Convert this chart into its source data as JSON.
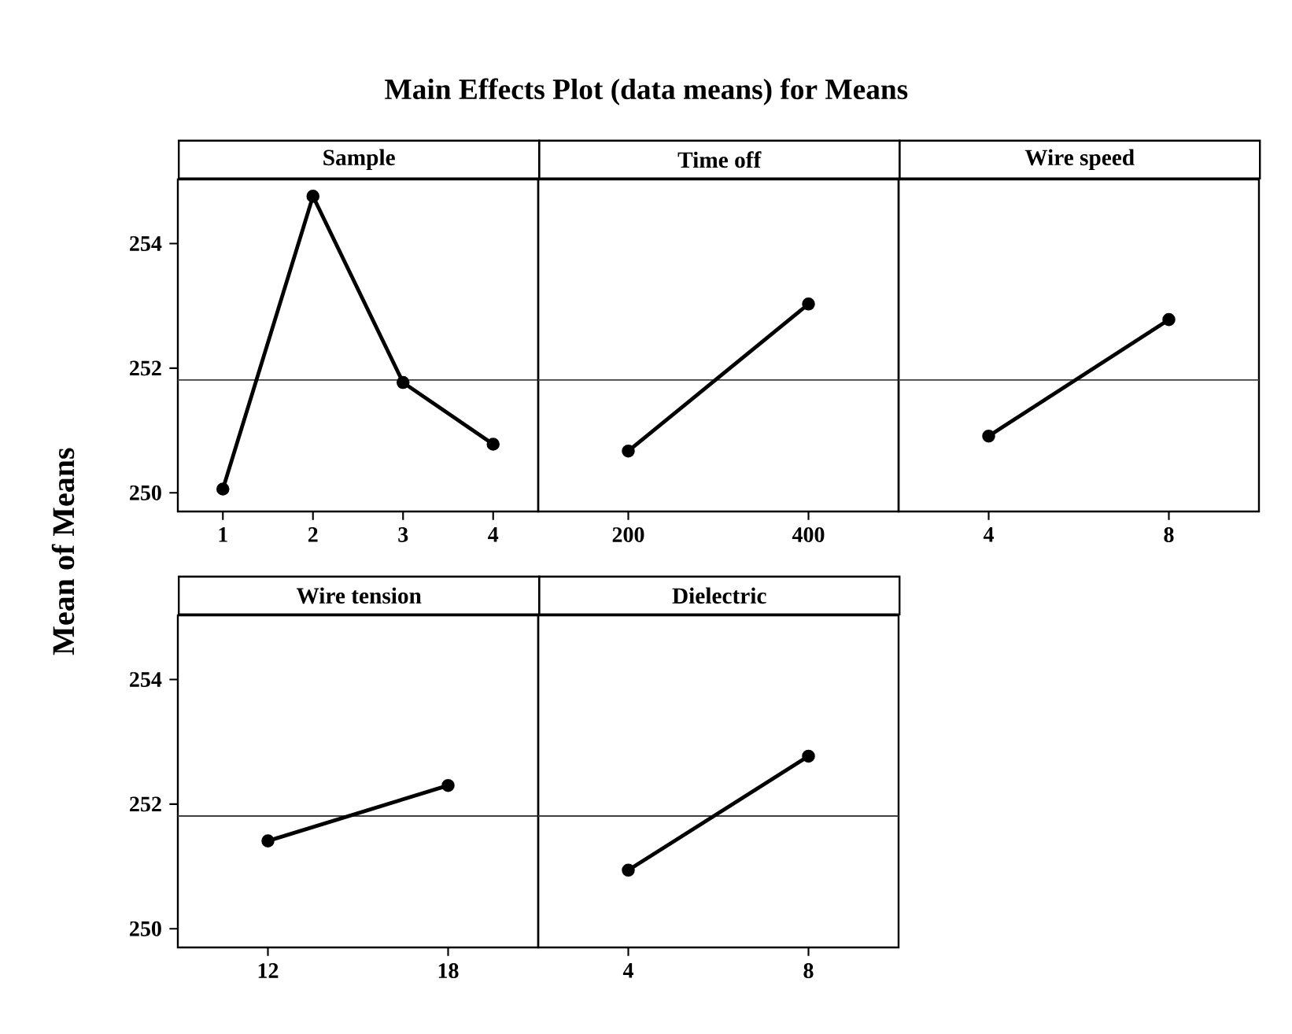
{
  "chart_data": [
    {
      "type": "line",
      "title": "Main Effects Plot (data means) for Means",
      "subtitle": "Sample",
      "ylabel": "Mean of Means",
      "x": [
        1,
        2,
        3,
        4
      ],
      "values": [
        250.06,
        254.76,
        251.77,
        250.78
      ],
      "color": "#000000",
      "marker": "circle",
      "xlim": [
        0.5,
        4.5
      ],
      "xticks": [
        1,
        2,
        3,
        4
      ],
      "ylim": [
        249.7,
        255.03
      ],
      "yticks": [
        250,
        252,
        254
      ],
      "ref_lines": [
        {
          "axis": "y",
          "value": 251.81,
          "color": "#404040"
        }
      ]
    },
    {
      "type": "line",
      "subtitle": "Time off",
      "x": [
        200,
        400
      ],
      "values": [
        250.67,
        253.03
      ],
      "color": "#000000",
      "marker": "circle",
      "xlim": [
        100,
        500
      ],
      "xticks": [
        200,
        400
      ],
      "ylim": [
        249.7,
        255.03
      ],
      "yticks": [
        250,
        252,
        254
      ],
      "tick_labels": "x",
      "ref_lines": [
        {
          "axis": "y",
          "value": 251.81,
          "color": "#404040"
        }
      ]
    },
    {
      "type": "line",
      "subtitle": "Wire speed",
      "x": [
        4,
        8
      ],
      "values": [
        250.91,
        252.78
      ],
      "color": "#000000",
      "marker": "circle",
      "xlim": [
        2,
        10
      ],
      "xticks": [
        4,
        8
      ],
      "ylim": [
        249.7,
        255.03
      ],
      "yticks": [
        250,
        252,
        254
      ],
      "tick_labels": "x",
      "ref_lines": [
        {
          "axis": "y",
          "value": 251.81,
          "color": "#404040"
        }
      ]
    },
    {
      "type": "line",
      "subtitle": "Wire tension",
      "x": [
        12,
        18
      ],
      "values": [
        251.41,
        252.3
      ],
      "color": "#000000",
      "marker": "circle",
      "xlim": [
        9,
        21
      ],
      "xticks": [
        12,
        18
      ],
      "ylim": [
        249.7,
        255.03
      ],
      "yticks": [
        250,
        252,
        254
      ],
      "ref_lines": [
        {
          "axis": "y",
          "value": 251.81,
          "color": "#404040"
        }
      ]
    },
    {
      "type": "line",
      "subtitle": "Dielectric",
      "x": [
        4,
        8
      ],
      "values": [
        250.94,
        252.77
      ],
      "color": "#000000",
      "marker": "circle",
      "xlim": [
        2,
        10
      ],
      "xticks": [
        4,
        8
      ],
      "ylim": [
        249.7,
        255.03
      ],
      "yticks": [
        250,
        252,
        254
      ],
      "tick_labels": "x",
      "ref_lines": [
        {
          "axis": "y",
          "value": 251.81,
          "color": "#404040"
        }
      ]
    }
  ]
}
